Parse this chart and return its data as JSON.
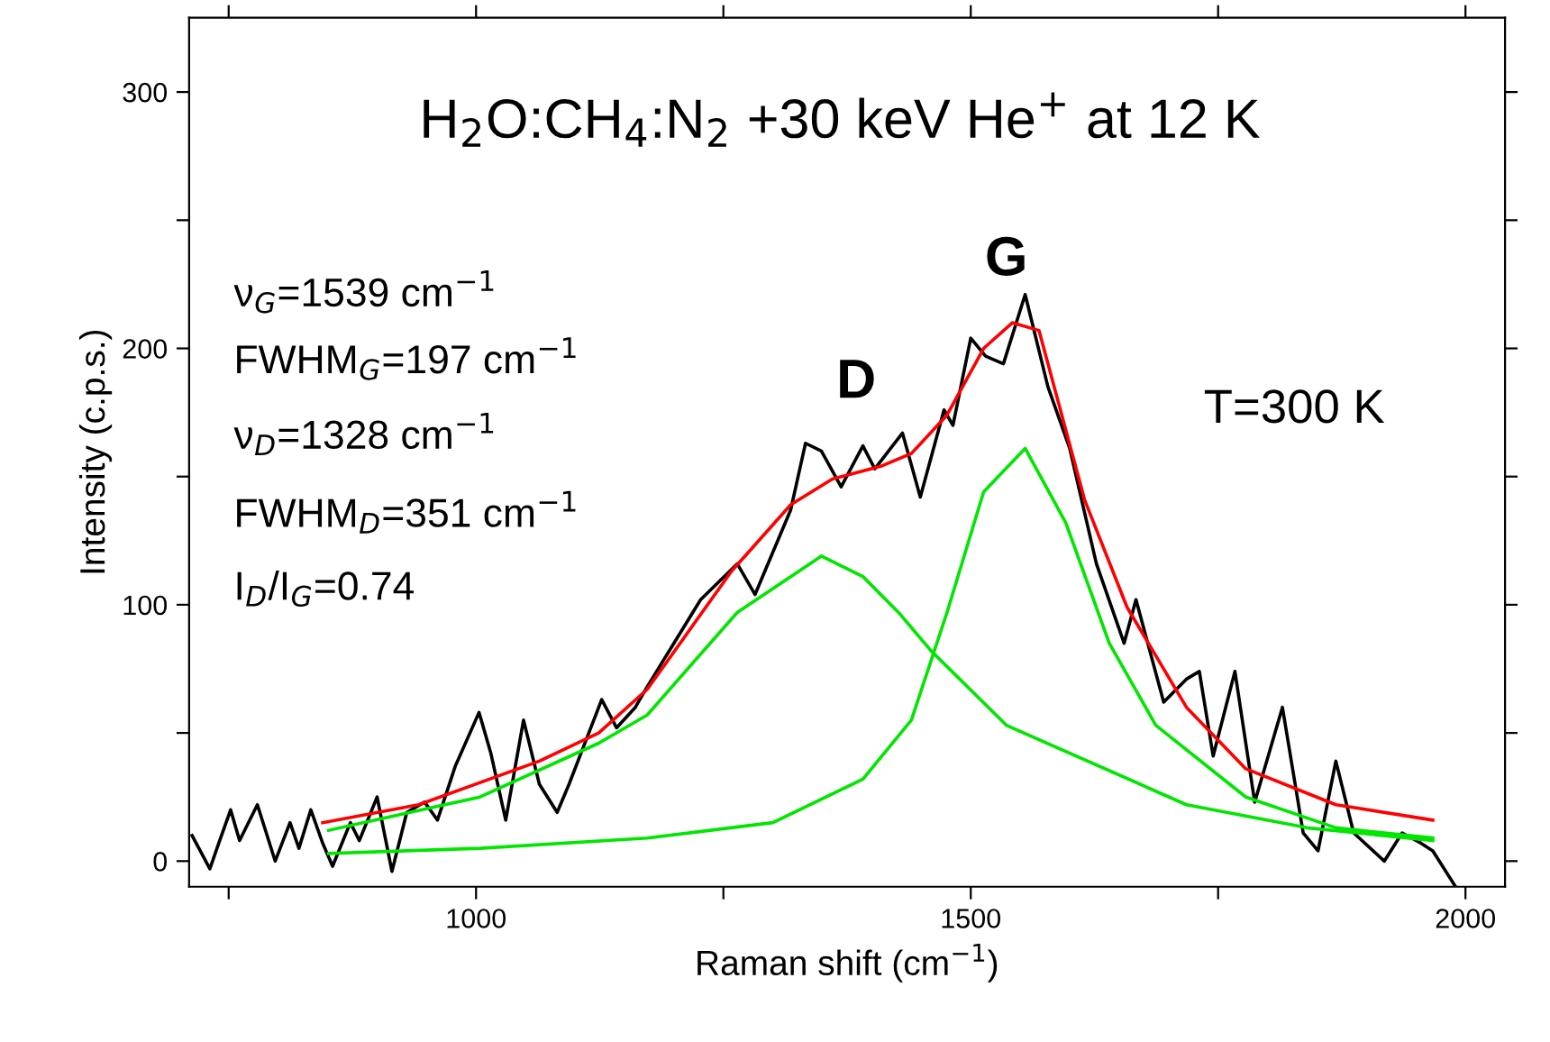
{
  "chart_data": {
    "type": "line",
    "xlabel": "Raman shift (cm$^{−1}$)",
    "ylabel": "Intensity (c.p.s.)",
    "xlim": [
      710,
      2040
    ],
    "ylim": [
      -10,
      329
    ],
    "xticks": [
      {
        "value": 750,
        "label": null
      },
      1000,
      {
        "value": 1250,
        "label": null
      },
      1500,
      {
        "value": 1750,
        "label": null
      },
      2000
    ],
    "yticks": [
      0,
      {
        "value": 50,
        "label": null
      },
      100,
      {
        "value": 150,
        "label": null
      },
      200,
      {
        "value": 250,
        "label": null
      },
      300
    ],
    "grid": false,
    "legend": false,
    "marker": "none",
    "line_style": "solid",
    "annotations": [
      "H$_{2}$O:CH$_{4}$:N$_{2}$ +30 keV He$^{+}$ at 12 K",
      "ν$_{G}$=1539 cm$^{−1}$",
      "FWHM$_{G}$=197 cm$^{−1}$",
      "ν$_{D}$=1328 cm$^{−1}$",
      "FWHM$_{D}$=351 cm$^{−1}$",
      "I$_{D}$/I$_{G}$=0.74",
      "D",
      "G",
      "T=300 K"
    ],
    "series": [
      {
        "color": "#000000",
        "x": [
          713,
          731,
          740,
          752,
          761,
          779,
          797,
          812,
          821,
          833,
          845,
          855,
          873,
          882,
          900,
          915,
          930,
          948,
          961,
          979,
          1003,
          1015,
          1030,
          1048,
          1064,
          1082,
          1094,
          1106,
          1127,
          1142,
          1161,
          1173,
          1227,
          1264,
          1282,
          1318,
          1333,
          1349,
          1369,
          1391,
          1403,
          1431,
          1449,
          1473,
          1482,
          1500,
          1515,
          1533,
          1555,
          1578,
          1600,
          1627,
          1655,
          1667,
          1695,
          1718,
          1731,
          1745,
          1767,
          1787,
          1815,
          1836,
          1851,
          1869,
          1887,
          1918,
          1936,
          1955,
          1967,
          1990
        ],
        "values": [
          10,
          -3,
          7,
          20,
          8,
          22,
          0,
          15,
          5,
          20,
          7,
          -2,
          15,
          8,
          25,
          -4,
          19,
          23,
          16,
          37,
          58,
          42,
          16,
          55,
          30,
          19,
          30,
          42,
          63,
          52,
          60,
          68,
          102,
          116,
          104,
          137,
          163,
          160,
          146,
          162,
          153,
          167,
          142,
          176,
          170,
          204,
          197,
          194,
          221,
          185,
          161,
          116,
          85,
          102,
          62,
          71,
          74,
          41,
          74,
          23,
          60,
          11,
          4,
          39,
          11,
          0,
          11,
          7,
          4,
          -10
        ]
      },
      {
        "color": "#ff0000",
        "x": [
          845,
          942,
          1064,
          1124,
          1173,
          1258,
          1318,
          1360,
          1409,
          1440,
          1476,
          1513,
          1542,
          1569,
          1615,
          1658,
          1718,
          1778,
          1869,
          1967
        ],
        "values": [
          15,
          22,
          39,
          50,
          67,
          113,
          139,
          149,
          154,
          159,
          174,
          200,
          210,
          207,
          141,
          99,
          60,
          36,
          22,
          16
        ]
      },
      {
        "color": "#00e600",
        "x": [
          851,
          1004,
          1124,
          1173,
          1264,
          1349,
          1391,
          1427,
          1460,
          1536,
          1718,
          1840,
          1967
        ],
        "values": [
          12,
          25,
          46,
          57,
          97,
          119,
          111,
          97,
          82,
          53,
          22,
          13,
          8
        ]
      },
      {
        "color": "#00e600",
        "x": [
          851,
          1004,
          1173,
          1300,
          1391,
          1440,
          1476,
          1513,
          1555,
          1596,
          1640,
          1687,
          1778,
          1869,
          1967
        ],
        "values": [
          3,
          5,
          9,
          15,
          32,
          55,
          97,
          144,
          161,
          132,
          85,
          53,
          25,
          13,
          9
        ]
      }
    ]
  }
}
